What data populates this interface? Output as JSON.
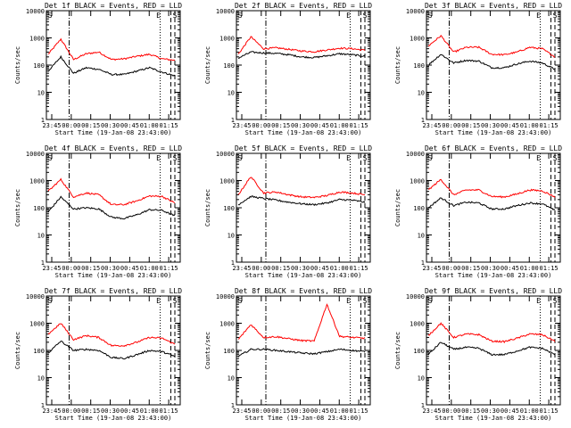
{
  "chart_data": [
    {
      "type": "line",
      "title": "Det 1f BLACK = Events, RED = LLD",
      "xlabel": "Start Time (19-Jan-08 23:43:00)",
      "ylabel": "Counts/sec",
      "ylim": [
        1,
        10000
      ],
      "y_scale": "log",
      "x_ticks": [
        "23:45",
        "00:00",
        "00:15",
        "00:30",
        "00:45",
        "01:00",
        "01:15"
      ],
      "y_ticks": [
        "1",
        "10",
        "100",
        "1000",
        "10000"
      ],
      "markers": [
        "S",
        "E",
        "S"
      ],
      "variant": "A",
      "series": [
        {
          "color": "#ff0000",
          "values": [
            250,
            900,
            160,
            260,
            300,
            160,
            170,
            210,
            250,
            170,
            150
          ]
        },
        {
          "color": "#000000",
          "values": [
            60,
            200,
            50,
            80,
            70,
            45,
            45,
            60,
            80,
            55,
            40
          ]
        }
      ]
    },
    {
      "type": "line",
      "title": "Det 2f BLACK = Events, RED = LLD",
      "xlabel": "Start Time (19-Jan-08 23:43:00)",
      "ylabel": "Counts/sec",
      "ylim": [
        1,
        10000
      ],
      "y_scale": "log",
      "x_ticks": [
        "23:45",
        "00:00",
        "00:15",
        "00:30",
        "00:45",
        "01:00",
        "01:15"
      ],
      "y_ticks": [
        "1",
        "10",
        "100",
        "1000",
        "10000"
      ],
      "markers": [
        "S",
        "E",
        "S"
      ],
      "variant": "B",
      "series": [
        {
          "color": "#ff0000",
          "values": [
            250,
            1100,
            400,
            430,
            380,
            330,
            310,
            360,
            420,
            400,
            350
          ]
        },
        {
          "color": "#000000",
          "values": [
            180,
            300,
            280,
            270,
            240,
            200,
            190,
            220,
            260,
            240,
            210
          ]
        }
      ]
    },
    {
      "type": "line",
      "title": "Det 3f BLACK = Events, RED = LLD",
      "xlabel": "Start Time (19-Jan-08 23:43:00)",
      "ylabel": "Counts/sec",
      "ylim": [
        1,
        10000
      ],
      "y_scale": "log",
      "x_ticks": [
        "23:45",
        "00:00",
        "00:15",
        "00:30",
        "00:45",
        "01:00",
        "01:15"
      ],
      "y_ticks": [
        "1",
        "10",
        "100",
        "1000",
        "10000"
      ],
      "markers": [
        "S",
        "E",
        "S"
      ],
      "variant": "A",
      "series": [
        {
          "color": "#ff0000",
          "values": [
            500,
            1200,
            300,
            450,
            450,
            250,
            240,
            300,
            450,
            400,
            200
          ]
        },
        {
          "color": "#000000",
          "values": [
            100,
            250,
            120,
            150,
            140,
            80,
            80,
            110,
            140,
            120,
            70
          ]
        }
      ]
    },
    {
      "type": "line",
      "title": "Det 4f BLACK = Events, RED = LLD",
      "xlabel": "Start Time (19-Jan-08 23:43:00)",
      "ylabel": "Counts/sec",
      "ylim": [
        1,
        10000
      ],
      "y_scale": "log",
      "x_ticks": [
        "23:45",
        "00:00",
        "00:15",
        "00:30",
        "00:45",
        "01:00",
        "01:15"
      ],
      "y_ticks": [
        "1",
        "10",
        "100",
        "1000",
        "10000"
      ],
      "markers": [
        "S",
        "E",
        "S"
      ],
      "variant": "A",
      "series": [
        {
          "color": "#ff0000",
          "values": [
            400,
            1100,
            250,
            350,
            300,
            130,
            130,
            180,
            270,
            260,
            150
          ]
        },
        {
          "color": "#000000",
          "values": [
            70,
            250,
            90,
            100,
            90,
            45,
            40,
            55,
            85,
            80,
            50
          ]
        }
      ]
    },
    {
      "type": "line",
      "title": "Det 5f BLACK = Events, RED = LLD",
      "xlabel": "Start Time (19-Jan-08 23:43:00)",
      "ylabel": "Counts/sec",
      "ylim": [
        1,
        10000
      ],
      "y_scale": "log",
      "x_ticks": [
        "23:45",
        "00:00",
        "00:15",
        "00:30",
        "00:45",
        "01:00",
        "01:15"
      ],
      "y_ticks": [
        "1",
        "10",
        "100",
        "1000",
        "10000"
      ],
      "markers": [
        "S",
        "E",
        "S"
      ],
      "variant": "B",
      "series": [
        {
          "color": "#ff0000",
          "values": [
            300,
            1400,
            350,
            380,
            300,
            250,
            240,
            280,
            380,
            350,
            300
          ]
        },
        {
          "color": "#000000",
          "values": [
            130,
            260,
            220,
            190,
            160,
            140,
            130,
            150,
            200,
            190,
            160
          ]
        }
      ]
    },
    {
      "type": "line",
      "title": "Det 6f BLACK = Events, RED = LLD",
      "xlabel": "Start Time (19-Jan-08 23:43:00)",
      "ylabel": "Counts/sec",
      "ylim": [
        1,
        10000
      ],
      "y_scale": "log",
      "x_ticks": [
        "23:45",
        "00:00",
        "00:15",
        "00:30",
        "00:45",
        "01:00",
        "01:15"
      ],
      "y_ticks": [
        "1",
        "10",
        "100",
        "1000",
        "10000"
      ],
      "markers": [
        "S",
        "E",
        "S"
      ],
      "variant": "A",
      "series": [
        {
          "color": "#ff0000",
          "values": [
            450,
            1100,
            300,
            450,
            450,
            260,
            250,
            320,
            450,
            420,
            250
          ]
        },
        {
          "color": "#000000",
          "values": [
            100,
            230,
            120,
            160,
            150,
            90,
            90,
            120,
            150,
            140,
            80
          ]
        }
      ]
    },
    {
      "type": "line",
      "title": "Det 7f BLACK = Events, RED = LLD",
      "xlabel": "Start Time (19-Jan-08 23:43:00)",
      "ylabel": "Counts/sec",
      "ylim": [
        1,
        10000
      ],
      "y_scale": "log",
      "x_ticks": [
        "23:45",
        "00:00",
        "00:15",
        "00:30",
        "00:45",
        "01:00",
        "01:15"
      ],
      "y_ticks": [
        "1",
        "10",
        "100",
        "1000",
        "10000"
      ],
      "markers": [
        "S",
        "E",
        "S"
      ],
      "variant": "A",
      "series": [
        {
          "color": "#ff0000",
          "values": [
            400,
            1000,
            250,
            350,
            300,
            150,
            150,
            200,
            300,
            280,
            170
          ]
        },
        {
          "color": "#000000",
          "values": [
            80,
            220,
            100,
            110,
            100,
            55,
            50,
            70,
            100,
            90,
            60
          ]
        }
      ]
    },
    {
      "type": "line",
      "title": "Det 8f BLACK = Events, RED = LLD",
      "xlabel": "Start Time (19-Jan-08 23:43:00)",
      "ylabel": "Counts/sec",
      "ylim": [
        1,
        10000
      ],
      "y_scale": "log",
      "x_ticks": [
        "23:45",
        "00:00",
        "00:15",
        "00:30",
        "00:45",
        "01:00",
        "01:15"
      ],
      "y_ticks": [
        "1",
        "10",
        "100",
        "1000",
        "10000"
      ],
      "markers": [
        "S",
        "E",
        "S"
      ],
      "variant": "B",
      "series": [
        {
          "color": "#ff0000",
          "values": [
            250,
            900,
            300,
            320,
            270,
            230,
            220,
            5000,
            330,
            300,
            280
          ]
        },
        {
          "color": "#000000",
          "values": [
            60,
            110,
            110,
            100,
            90,
            80,
            75,
            90,
            110,
            100,
            90
          ]
        }
      ]
    },
    {
      "type": "line",
      "title": "Det 9f BLACK = Events, RED = LLD",
      "xlabel": "Start Time (19-Jan-08 23:43:00)",
      "ylabel": "Counts/sec",
      "ylim": [
        1,
        10000
      ],
      "y_scale": "log",
      "x_ticks": [
        "23:45",
        "00:00",
        "00:15",
        "00:30",
        "00:45",
        "01:00",
        "01:15"
      ],
      "y_ticks": [
        "1",
        "10",
        "100",
        "1000",
        "10000"
      ],
      "markers": [
        "S",
        "E",
        "S"
      ],
      "variant": "A",
      "series": [
        {
          "color": "#ff0000",
          "values": [
            350,
            1000,
            300,
            400,
            380,
            220,
            210,
            280,
            400,
            380,
            220
          ]
        },
        {
          "color": "#000000",
          "values": [
            70,
            200,
            110,
            130,
            120,
            70,
            70,
            95,
            130,
            120,
            70
          ]
        }
      ]
    }
  ]
}
